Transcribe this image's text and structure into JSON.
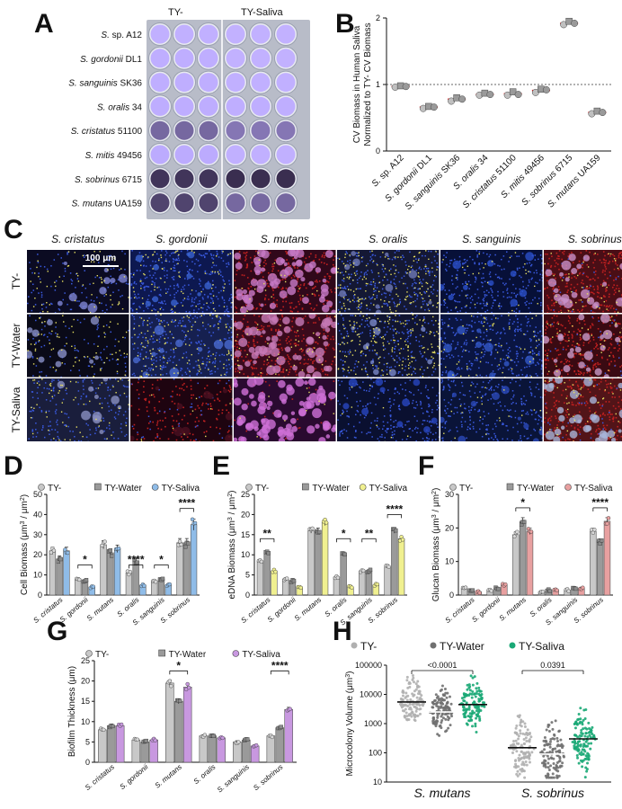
{
  "panels": {
    "A": {
      "label": "A",
      "col_headers": [
        "TY-",
        "TY-Saliva"
      ],
      "strains": [
        {
          "sp": "S.",
          "name": " sp. A12"
        },
        {
          "sp": "S. gordonii",
          "name": " DL1"
        },
        {
          "sp": "S. sanguinis",
          "name": " SK36"
        },
        {
          "sp": "S. oralis",
          "name": " 34"
        },
        {
          "sp": "S. cristatus",
          "name": " 51100"
        },
        {
          "sp": "S. mitis",
          "name": " 49456"
        },
        {
          "sp": "S. sobrinus",
          "name": " 6715"
        },
        {
          "sp": "S. mutans",
          "name": " UA159"
        }
      ],
      "well_intensity": [
        [
          0.05,
          0.04
        ],
        [
          0.06,
          0.04
        ],
        [
          0.06,
          0.05
        ],
        [
          0.07,
          0.06
        ],
        [
          0.55,
          0.45
        ],
        [
          0.08,
          0.05
        ],
        [
          0.9,
          0.95
        ],
        [
          0.8,
          0.55
        ]
      ]
    },
    "B": {
      "label": "B",
      "chart_data": {
        "type": "scatter",
        "ylabel": "CV Biomass in Human Saliva Normalized to TY- CV Biomass",
        "ylabel_lines": [
          "CV Biomass in Human Saliva",
          "Normalized to TY- CV Biomass"
        ],
        "ylim": [
          0,
          2.0
        ],
        "yticks": [
          "0",
          "1",
          "2"
        ],
        "reference_line": 1.0,
        "categories": [
          {
            "sp": "S.",
            "name": " sp. A12"
          },
          {
            "sp": "S. gordonii",
            "name": " DL1"
          },
          {
            "sp": "S. sanguinis",
            "name": " SK36"
          },
          {
            "sp": "S. oralis",
            "name": " 34"
          },
          {
            "sp": "S. cristatus",
            "name": " 51100"
          },
          {
            "sp": "S. mitis",
            "name": " 49456"
          },
          {
            "sp": "S. sobrinus",
            "name": " 6715"
          },
          {
            "sp": "S. mutans",
            "name": " UA159"
          }
        ],
        "means": [
          0.97,
          0.66,
          0.78,
          0.85,
          0.86,
          0.91,
          1.92,
          0.58
        ],
        "points": [
          [
            0.96,
            0.98,
            0.97
          ],
          [
            0.64,
            0.67,
            0.66
          ],
          [
            0.75,
            0.8,
            0.78
          ],
          [
            0.84,
            0.87,
            0.85
          ],
          [
            0.84,
            0.89,
            0.85
          ],
          [
            0.88,
            0.93,
            0.92
          ],
          [
            1.9,
            1.95,
            1.92
          ],
          [
            0.56,
            0.6,
            0.58
          ]
        ]
      }
    },
    "C": {
      "label": "C",
      "col_labels": [
        "S. cristatus",
        "S. gordonii",
        "S. mutans",
        "S. oralis",
        "S. sanguinis",
        "S. sobrinus"
      ],
      "row_labels": [
        "TY-",
        "TY-Water",
        "TY-Saliva"
      ],
      "scale_bar": "100 μm",
      "tiles": [
        [
          {
            "bg": "#0b0b22",
            "blue": 120,
            "yellow": 60,
            "red": 0,
            "mag": 0,
            "blob": "#7f86d6"
          },
          {
            "bg": "#0d1850",
            "blue": 320,
            "yellow": 80,
            "red": 0,
            "mag": 0,
            "blob": "#3a63d0"
          },
          {
            "bg": "#30081a",
            "blue": 0,
            "yellow": 20,
            "red": 300,
            "mag": 60,
            "blob": "#c87ac8"
          },
          {
            "bg": "#141834",
            "blue": 260,
            "yellow": 160,
            "red": 0,
            "mag": 0,
            "blob": "#6f7ab8"
          },
          {
            "bg": "#071038",
            "blue": 280,
            "yellow": 30,
            "red": 0,
            "mag": 0,
            "blob": "#2a4fc8"
          },
          {
            "bg": "#4a0e16",
            "blue": 40,
            "yellow": 60,
            "red": 340,
            "mag": 30,
            "blob": "#c890c8"
          }
        ],
        [
          {
            "bg": "#0a0a18",
            "blue": 100,
            "yellow": 70,
            "red": 0,
            "mag": 0,
            "blob": "#8890c8"
          },
          {
            "bg": "#162050",
            "blue": 280,
            "yellow": 120,
            "red": 0,
            "mag": 0,
            "blob": "#4a6ad0"
          },
          {
            "bg": "#3a0a1c",
            "blue": 0,
            "yellow": 40,
            "red": 320,
            "mag": 60,
            "blob": "#c87ab8"
          },
          {
            "bg": "#101430",
            "blue": 220,
            "yellow": 180,
            "red": 0,
            "mag": 0,
            "blob": "#7a88c8"
          },
          {
            "bg": "#0a1542",
            "blue": 300,
            "yellow": 60,
            "red": 0,
            "mag": 0,
            "blob": "#3258c8"
          },
          {
            "bg": "#3a0a12",
            "blue": 30,
            "yellow": 50,
            "red": 340,
            "mag": 30,
            "blob": "#c898c8"
          }
        ],
        [
          {
            "bg": "#1a1e3c",
            "blue": 180,
            "yellow": 60,
            "red": 0,
            "mag": 0,
            "blob": "#8a90c0"
          },
          {
            "bg": "#1e0410",
            "blue": 40,
            "yellow": 10,
            "red": 160,
            "mag": 0,
            "blob": "#4a1020"
          },
          {
            "bg": "#2a0a30",
            "blue": 0,
            "yellow": 10,
            "red": 40,
            "mag": 80,
            "blob": "#d070d8"
          },
          {
            "bg": "#0a1030",
            "blue": 240,
            "yellow": 10,
            "red": 0,
            "mag": 0,
            "blob": "#2846c0"
          },
          {
            "bg": "#0a1438",
            "blue": 260,
            "yellow": 20,
            "red": 0,
            "mag": 0,
            "blob": "#2a48b8"
          },
          {
            "bg": "#521418",
            "blue": 40,
            "yellow": 60,
            "red": 300,
            "mag": 40,
            "blob": "#a8b4d8"
          }
        ]
      ]
    },
    "D": {
      "label": "D",
      "chart_data": {
        "type": "bar",
        "legend": [
          "TY-",
          "TY-Water",
          "TY-Saliva"
        ],
        "ylabel": "Cell Biomass (μm³ / μm²)",
        "ylabel_text": "Cell Biomass (μm",
        "ylim": [
          0,
          50
        ],
        "yticks": [
          "0",
          "10",
          "20",
          "30",
          "40",
          "50"
        ],
        "categories": [
          "S. cristatus",
          "S. gordonii",
          "S. mutans",
          "S. oralis",
          "S. sanguinis",
          "S. sobrinus"
        ],
        "series": [
          {
            "name": "TY-",
            "values": [
              22,
              8,
              25,
              11,
              7,
              26
            ]
          },
          {
            "name": "TY-Water",
            "values": [
              18,
              7,
              21,
              17,
              8,
              26
            ]
          },
          {
            "name": "TY-Saliva",
            "values": [
              22,
              4,
              23,
              5,
              5,
              35
            ]
          }
        ],
        "colors": [
          "#c8c8c8",
          "#9a9a9a",
          "#8fbce8"
        ],
        "significance": [
          {
            "cat": 1,
            "label": "*",
            "y": 15
          },
          {
            "cat": 3,
            "label": "****",
            "y": 15
          },
          {
            "cat": 4,
            "label": "*",
            "y": 15
          },
          {
            "cat": 5,
            "label": "****",
            "y": 43
          }
        ]
      }
    },
    "E": {
      "label": "E",
      "chart_data": {
        "type": "bar",
        "legend": [
          "TY-",
          "TY-Water",
          "TY-Saliva"
        ],
        "ylabel": "eDNA Biomass (μm³ / μm²)",
        "ylabel_text": "eDNA Biomass (μm",
        "ylim": [
          0,
          25
        ],
        "yticks": [
          "0",
          "5",
          "10",
          "15",
          "20",
          "25"
        ],
        "categories": [
          "S. cristatus",
          "S. gordonii",
          "S. mutans",
          "S. oralis",
          "S. sanguinis",
          "S. sobrinus"
        ],
        "series": [
          {
            "name": "TY-",
            "values": [
              8.5,
              4,
              16,
              4.5,
              6,
              7
            ]
          },
          {
            "name": "TY-Water",
            "values": [
              10.5,
              3.5,
              16,
              10,
              6,
              16
            ]
          },
          {
            "name": "TY-Saliva",
            "values": [
              6,
              2,
              18,
              2,
              2.5,
              14
            ]
          }
        ],
        "colors": [
          "#c8c8c8",
          "#9a9a9a",
          "#f0f090"
        ],
        "significance": [
          {
            "cat": 0,
            "label": "**",
            "y": 14
          },
          {
            "cat": 3,
            "label": "*",
            "y": 14
          },
          {
            "cat": 4,
            "label": "**",
            "y": 14
          },
          {
            "cat": 5,
            "label": "****",
            "y": 20
          }
        ]
      }
    },
    "F": {
      "label": "F",
      "chart_data": {
        "type": "bar",
        "legend": [
          "TY-",
          "TY-Water",
          "TY-Saliva"
        ],
        "ylabel": "Glucan Biomass (μm³ / μm²)",
        "ylabel_text": "Glucan Biomass (μm",
        "ylim": [
          0,
          30
        ],
        "yticks": [
          "0",
          "10",
          "20",
          "30"
        ],
        "categories": [
          "S. cristatus",
          "S. gordonii",
          "S. mutans",
          "S. oralis",
          "S. sanguinis",
          "S. sobrinus"
        ],
        "series": [
          {
            "name": "TY-",
            "values": [
              2,
              1.5,
              18,
              1,
              1.5,
              19
            ]
          },
          {
            "name": "TY-Water",
            "values": [
              1.5,
              2,
              22,
              1.5,
              2,
              16
            ]
          },
          {
            "name": "TY-Saliva",
            "values": [
              1,
              3,
              19,
              1.5,
              2,
              22
            ]
          }
        ],
        "colors": [
          "#c8c8c8",
          "#9a9a9a",
          "#e8a0a0"
        ],
        "significance": [
          {
            "cat": 2,
            "label": "*",
            "y": 26
          },
          {
            "cat": 5,
            "label": "****",
            "y": 26
          }
        ]
      }
    },
    "G": {
      "label": "G",
      "chart_data": {
        "type": "bar",
        "legend": [
          "TY-",
          "TY-Water",
          "TY-Saliva"
        ],
        "ylabel": "Biofilm Thickness (μm)",
        "ylim": [
          0,
          25
        ],
        "yticks": [
          "0",
          "5",
          "10",
          "15",
          "20",
          "25"
        ],
        "categories": [
          "S. cristatus",
          "S. gordonii",
          "S. mutans",
          "S. oralis",
          "S. sanguinis",
          "S. sobrinus"
        ],
        "series": [
          {
            "name": "TY-",
            "values": [
              8,
              5.5,
              19.5,
              6.5,
              5,
              6.5
            ]
          },
          {
            "name": "TY-Water",
            "values": [
              9,
              5,
              15,
              6.5,
              5.5,
              8.5
            ]
          },
          {
            "name": "TY-Saliva",
            "values": [
              9,
              5.5,
              18.5,
              6,
              4,
              13
            ]
          }
        ],
        "colors": [
          "#c8c8c8",
          "#9a9a9a",
          "#c898e0"
        ],
        "significance": [
          {
            "cat": 2,
            "label": "*",
            "y": 22.5
          },
          {
            "cat": 5,
            "label": "****",
            "y": 22.5
          }
        ]
      }
    },
    "H": {
      "label": "H",
      "chart_data": {
        "type": "scatter",
        "legend": [
          "TY-",
          "TY-Water",
          "TY-Saliva"
        ],
        "ylabel": "Microcolony Volume (μm³)",
        "ylabel_text": "Microcolony Volume (μm",
        "yscale": "log",
        "ylim": [
          10,
          100000
        ],
        "yticks": [
          "10",
          "100",
          "1000",
          "10000",
          "100000"
        ],
        "categories": [
          "S. mutans",
          "S. sobrinus"
        ],
        "colors": [
          "#b0b0b0",
          "#707070",
          "#1aa876"
        ],
        "medians": [
          [
            5500,
            2500,
            4500
          ],
          [
            150,
            90,
            300
          ]
        ],
        "pvalues": [
          {
            "cat": 0,
            "label": "<0.0001"
          },
          {
            "cat": 1,
            "label": "0.0391"
          }
        ]
      }
    }
  }
}
